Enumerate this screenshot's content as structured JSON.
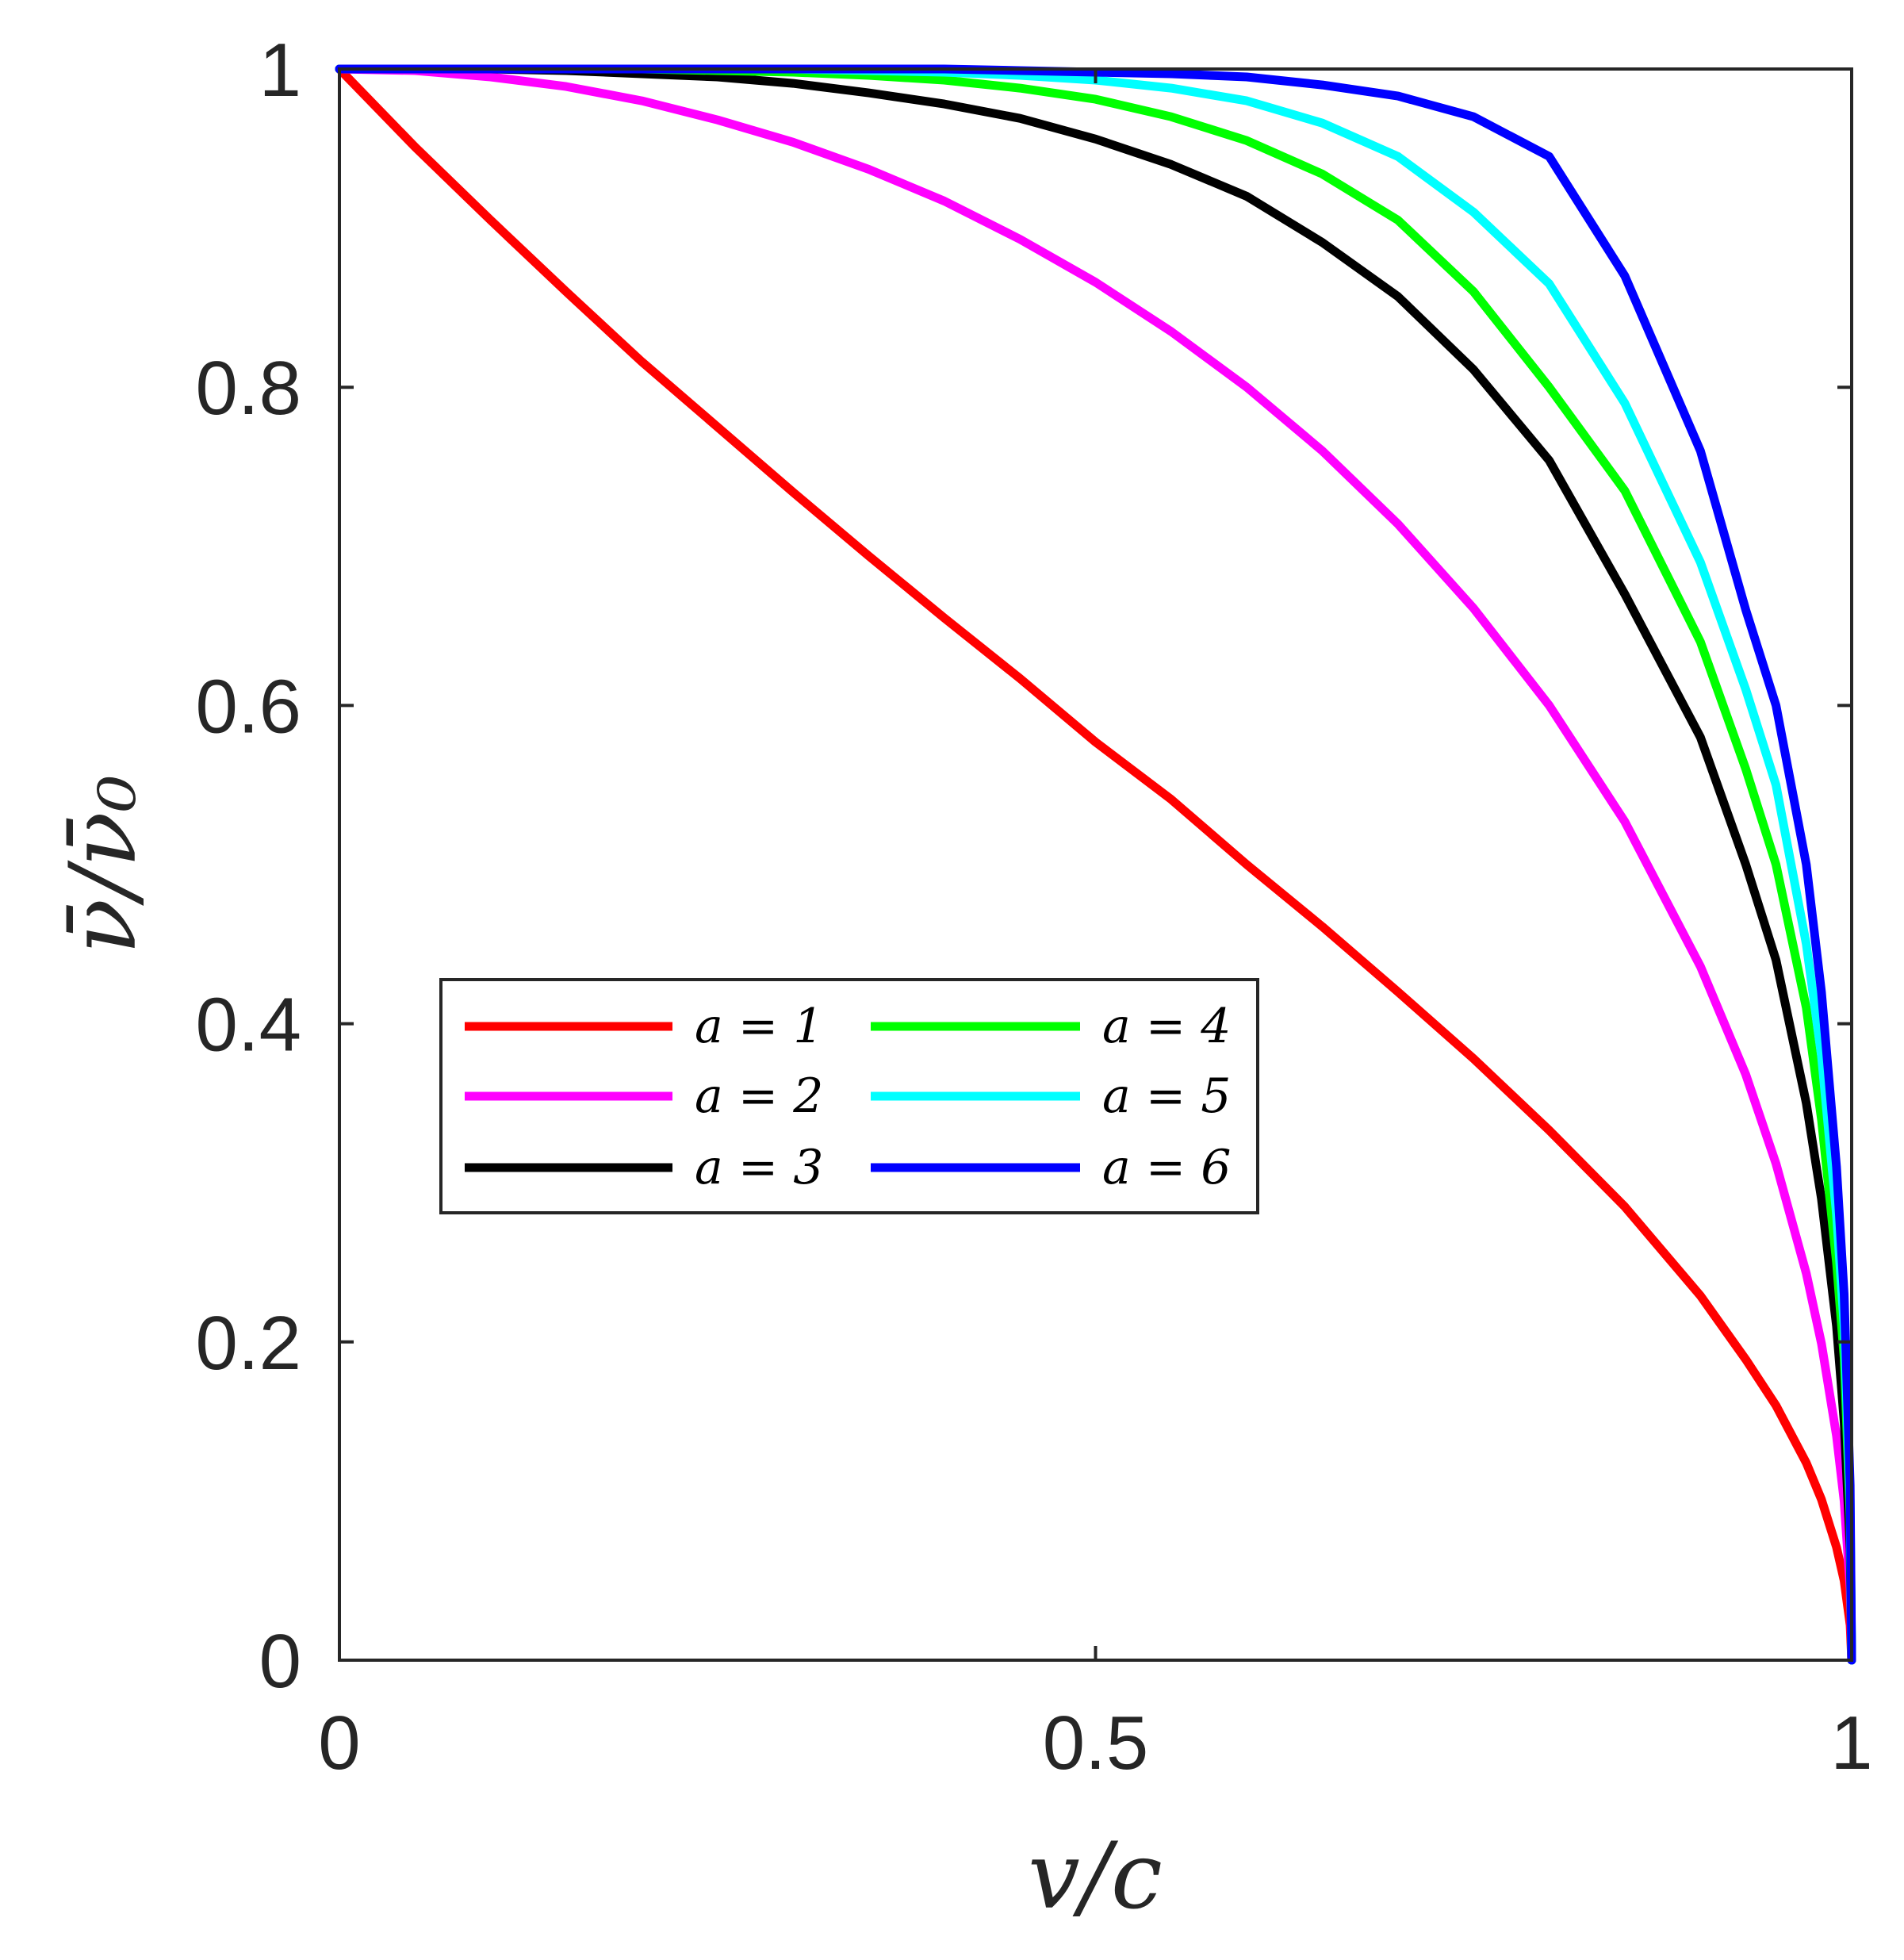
{
  "chart_data": {
    "type": "line",
    "xlabel": "v/c",
    "ylabel": "ν̄/ν̄₀",
    "xlim": [
      0,
      1
    ],
    "ylim": [
      0,
      1
    ],
    "x_ticks": [
      "0",
      "0.5",
      "1"
    ],
    "y_ticks": [
      "0",
      "0.2",
      "0.4",
      "0.6",
      "0.8",
      "1"
    ],
    "grid": false,
    "legend_position": "center-left",
    "x": [
      0,
      0.05,
      0.1,
      0.15,
      0.2,
      0.25,
      0.3,
      0.35,
      0.4,
      0.45,
      0.5,
      0.55,
      0.6,
      0.65,
      0.7,
      0.75,
      0.8,
      0.85,
      0.9,
      0.93,
      0.95,
      0.97,
      0.98,
      0.99,
      0.995,
      0.999,
      1.0
    ],
    "series": [
      {
        "name": "a = 1",
        "color": "#ff0000",
        "values": [
          1.0,
          0.951,
          0.905,
          0.86,
          0.816,
          0.775,
          0.734,
          0.694,
          0.655,
          0.617,
          0.577,
          0.541,
          0.5,
          0.461,
          0.42,
          0.378,
          0.333,
          0.285,
          0.229,
          0.189,
          0.16,
          0.124,
          0.101,
          0.071,
          0.05,
          0.022,
          0.0
        ]
      },
      {
        "name": "a = 2",
        "color": "#ff00ff",
        "values": [
          1.0,
          0.999,
          0.995,
          0.989,
          0.98,
          0.968,
          0.954,
          0.937,
          0.917,
          0.893,
          0.866,
          0.835,
          0.8,
          0.76,
          0.714,
          0.661,
          0.6,
          0.527,
          0.436,
          0.368,
          0.312,
          0.243,
          0.199,
          0.141,
          0.1,
          0.045,
          0.0
        ]
      },
      {
        "name": "a = 3",
        "color": "#000000",
        "values": [
          1.0,
          1.0,
          1.0,
          0.999,
          0.997,
          0.995,
          0.991,
          0.985,
          0.978,
          0.969,
          0.956,
          0.94,
          0.92,
          0.891,
          0.857,
          0.811,
          0.754,
          0.67,
          0.58,
          0.5,
          0.44,
          0.35,
          0.29,
          0.21,
          0.15,
          0.07,
          0.0
        ]
      },
      {
        "name": "a = 4",
        "color": "#00ff00",
        "values": [
          1.0,
          1.0,
          1.0,
          1.0,
          1.0,
          0.999,
          0.998,
          0.996,
          0.993,
          0.988,
          0.981,
          0.97,
          0.955,
          0.934,
          0.905,
          0.86,
          0.8,
          0.735,
          0.64,
          0.56,
          0.5,
          0.41,
          0.34,
          0.25,
          0.19,
          0.09,
          0.0
        ]
      },
      {
        "name": "a = 5",
        "color": "#00ffff",
        "values": [
          1.0,
          1.0,
          1.0,
          1.0,
          1.0,
          1.0,
          1.0,
          0.999,
          0.998,
          0.996,
          0.993,
          0.988,
          0.98,
          0.966,
          0.945,
          0.91,
          0.865,
          0.79,
          0.69,
          0.61,
          0.55,
          0.45,
          0.38,
          0.28,
          0.21,
          0.1,
          0.0
        ]
      },
      {
        "name": "a = 6",
        "color": "#0000ff",
        "values": [
          1.0,
          1.0,
          1.0,
          1.0,
          1.0,
          1.0,
          1.0,
          1.0,
          1.0,
          0.999,
          0.998,
          0.997,
          0.995,
          0.99,
          0.983,
          0.97,
          0.945,
          0.87,
          0.76,
          0.66,
          0.6,
          0.5,
          0.42,
          0.31,
          0.23,
          0.11,
          0.0
        ]
      }
    ]
  }
}
